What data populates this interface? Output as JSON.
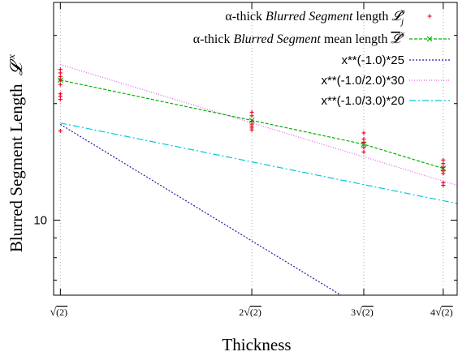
{
  "chart_data": {
    "type": "line",
    "xlabel": "Thickness",
    "ylabel": "Blurred Segment Length",
    "ylabel_symbol": "𝓛",
    "ylabel_sup": "x",
    "y_scale": "log",
    "x_scale": "log",
    "xlim": [
      1.38,
      5.95
    ],
    "ylim": [
      6.4,
      36.5
    ],
    "y_ticks": [
      10
    ],
    "y_tick_labels": [
      "10"
    ],
    "x_ticks": [
      1.41421,
      2.82843,
      4.24264,
      5.65685
    ],
    "x_tick_labels": [
      {
        "prefix": "",
        "radicand": "(2)"
      },
      {
        "prefix": "2",
        "radicand": "(2)"
      },
      {
        "prefix": "3",
        "radicand": "(2)"
      },
      {
        "prefix": "4",
        "radicand": "(2)"
      }
    ],
    "grid": "vertical dotted at x ticks",
    "legend_position": "top-right",
    "legend": [
      {
        "prefix": "α-thick ",
        "italic": "Blurred Segment",
        "suffix": " length ",
        "symbol": "𝓛",
        "sub": "j",
        "sup": "x",
        "kind": "points"
      },
      {
        "prefix": "α-thick ",
        "italic": "Blurred Segment",
        "suffix": " mean length ",
        "symbol": "𝓛",
        "sup": "x",
        "overline": true,
        "kind": "line-points"
      },
      {
        "prefix": "x**(-1.0)*25",
        "kind": "line"
      },
      {
        "prefix": "x**(-1.0/2.0)*30",
        "kind": "line"
      },
      {
        "prefix": "x**(-1.0/3.0)*20",
        "kind": "line"
      }
    ],
    "series": [
      {
        "id": "length-points",
        "color": "#e8001c",
        "x": [
          1.41421,
          1.41421,
          1.41421,
          1.41421,
          1.41421,
          1.41421,
          1.41421,
          1.41421,
          1.41421,
          2.82843,
          2.82843,
          2.82843,
          2.82843,
          2.82843,
          2.82843,
          2.82843,
          4.24264,
          4.24264,
          4.24264,
          4.24264,
          4.24264,
          5.65685,
          5.65685,
          5.65685,
          5.65685,
          5.65685,
          5.65685,
          5.65685
        ],
        "values": [
          24.5,
          24.0,
          23.5,
          23.0,
          22.4,
          21.2,
          20.9,
          20.5,
          17.0,
          19.0,
          18.6,
          18.0,
          17.7,
          17.5,
          17.3,
          17.1,
          16.8,
          16.2,
          15.9,
          15.4,
          15.0,
          14.3,
          14.0,
          13.7,
          13.4,
          13.2,
          12.5,
          12.3
        ]
      },
      {
        "id": "mean-length",
        "color": "#00b400",
        "x": [
          1.41421,
          2.82843,
          4.24264,
          5.65685
        ],
        "values": [
          23.0,
          18.1,
          15.7,
          13.6
        ]
      },
      {
        "id": "fit-1",
        "color": "#1a1aa8",
        "formula": "x**(-1.0)*25",
        "exponent": -1.0,
        "coef": 25
      },
      {
        "id": "fit-2",
        "color": "#e060e0",
        "formula": "x**(-1.0/2.0)*30",
        "exponent": -0.5,
        "coef": 30
      },
      {
        "id": "fit-3",
        "color": "#00c8dc",
        "formula": "x**(-1.0/3.0)*20",
        "exponent": -0.33333,
        "coef": 20
      }
    ]
  }
}
